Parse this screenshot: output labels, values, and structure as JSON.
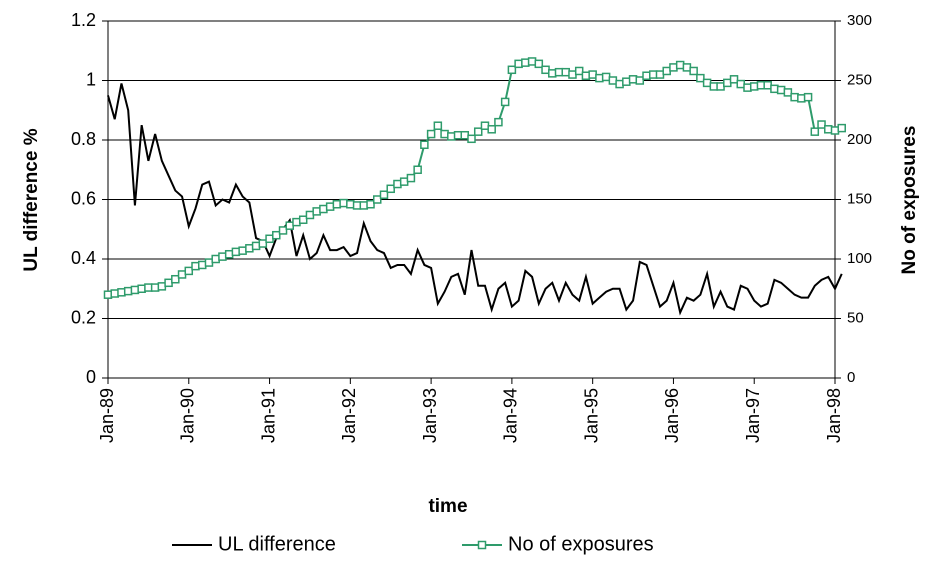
{
  "chart_data": {
    "type": "line",
    "x_label": "time",
    "y_label": "UL difference %",
    "y2_label": "No of exposures",
    "categories": [
      "Jan-89",
      null,
      null,
      null,
      null,
      null,
      null,
      null,
      null,
      null,
      null,
      null,
      "Jan-90",
      null,
      null,
      null,
      null,
      null,
      null,
      null,
      null,
      null,
      null,
      null,
      "Jan-91",
      null,
      null,
      null,
      null,
      null,
      null,
      null,
      null,
      null,
      null,
      null,
      "Jan-92",
      null,
      null,
      null,
      null,
      null,
      null,
      null,
      null,
      null,
      null,
      null,
      "Jan-93",
      null,
      null,
      null,
      null,
      null,
      null,
      null,
      null,
      null,
      null,
      null,
      "Jan-94",
      null,
      null,
      null,
      null,
      null,
      null,
      null,
      null,
      null,
      null,
      null,
      "Jan-95",
      null,
      null,
      null,
      null,
      null,
      null,
      null,
      null,
      null,
      null,
      null,
      "Jan-96",
      null,
      null,
      null,
      null,
      null,
      null,
      null,
      null,
      null,
      null,
      null,
      "Jan-97",
      null,
      null,
      null,
      null,
      null,
      null,
      null,
      null,
      null,
      null,
      null,
      "Jan-98",
      null
    ],
    "series": [
      {
        "name": "UL difference",
        "color": "#000000",
        "axis": "y",
        "values": [
          0.95,
          0.87,
          0.99,
          0.9,
          0.58,
          0.85,
          0.73,
          0.82,
          0.73,
          0.68,
          0.63,
          0.61,
          0.51,
          0.57,
          0.65,
          0.66,
          0.58,
          0.6,
          0.59,
          0.65,
          0.61,
          0.59,
          0.47,
          0.46,
          0.41,
          0.47,
          0.5,
          0.53,
          0.41,
          0.48,
          0.4,
          0.42,
          0.48,
          0.43,
          0.43,
          0.44,
          0.41,
          0.42,
          0.52,
          0.46,
          0.43,
          0.42,
          0.37,
          0.38,
          0.38,
          0.35,
          0.43,
          0.38,
          0.37,
          0.25,
          0.29,
          0.34,
          0.35,
          0.28,
          0.43,
          0.31,
          0.31,
          0.23,
          0.3,
          0.32,
          0.24,
          0.26,
          0.36,
          0.34,
          0.25,
          0.3,
          0.32,
          0.26,
          0.32,
          0.28,
          0.26,
          0.34,
          0.25,
          0.27,
          0.29,
          0.3,
          0.3,
          0.23,
          0.26,
          0.39,
          0.38,
          0.31,
          0.24,
          0.26,
          0.32,
          0.22,
          0.27,
          0.26,
          0.28,
          0.35,
          0.24,
          0.29,
          0.24,
          0.23,
          0.31,
          0.3,
          0.26,
          0.24,
          0.25,
          0.33,
          0.32,
          0.3,
          0.28,
          0.27,
          0.27,
          0.31,
          0.33,
          0.34,
          0.3,
          0.35
        ]
      },
      {
        "name": "No of exposures",
        "color": "#2e9b6b",
        "axis": "y2",
        "values": [
          70,
          71,
          72,
          73,
          74,
          75,
          76,
          76,
          77,
          80,
          83,
          87,
          90,
          94,
          95,
          97,
          100,
          102,
          104,
          106,
          107,
          109,
          111,
          113,
          117,
          120,
          124,
          128,
          131,
          133,
          137,
          140,
          142,
          144,
          146,
          147,
          146,
          145,
          145,
          146,
          150,
          154,
          159,
          163,
          165,
          168,
          175,
          196,
          205,
          212,
          205,
          203,
          204,
          204,
          201,
          207,
          212,
          209,
          215,
          232,
          259,
          264,
          265,
          266,
          264,
          259,
          256,
          257,
          257,
          255,
          258,
          254,
          255,
          252,
          253,
          250,
          247,
          249,
          251,
          250,
          254,
          255,
          255,
          258,
          261,
          263,
          261,
          258,
          252,
          248,
          245,
          245,
          248,
          251,
          247,
          244,
          245,
          246,
          246,
          243,
          242,
          240,
          236,
          235,
          236,
          207,
          213,
          209,
          208,
          210
        ]
      }
    ],
    "ylim": [
      0,
      1.2
    ],
    "yticks": [
      0,
      0.2,
      0.4,
      0.6,
      0.8,
      1,
      1.2
    ],
    "y2lim": [
      0,
      300
    ],
    "y2ticks": [
      0,
      50,
      100,
      150,
      200,
      250,
      300
    ],
    "grid": true,
    "legend": "bottom"
  }
}
